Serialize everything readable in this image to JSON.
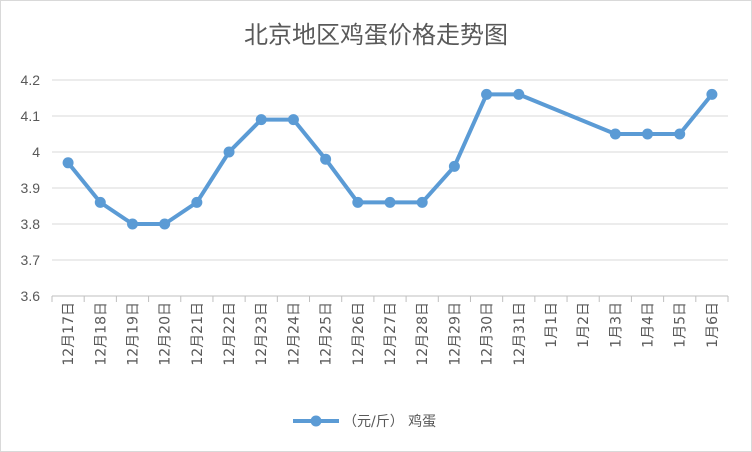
{
  "chart_data": {
    "type": "line",
    "title": "北京地区鸡蛋价格走势图",
    "xlabel": "",
    "ylabel": "",
    "categories": [
      "12月17日",
      "12月18日",
      "12月19日",
      "12月20日",
      "12月21日",
      "12月22日",
      "12月23日",
      "12月24日",
      "12月25日",
      "12月26日",
      "12月27日",
      "12月28日",
      "12月29日",
      "12月30日",
      "12月31日",
      "1月1日",
      "1月2日",
      "1月3日",
      "1月4日",
      "1月5日",
      "1月6日"
    ],
    "series": [
      {
        "name": "（元/斤） 鸡蛋",
        "color": "#5b9bd5",
        "values": [
          3.97,
          3.86,
          3.8,
          3.8,
          3.86,
          4.0,
          4.09,
          4.09,
          3.98,
          3.86,
          3.86,
          3.86,
          3.96,
          4.16,
          4.16,
          null,
          null,
          4.05,
          4.05,
          4.05,
          4.16
        ]
      }
    ],
    "ylim": [
      3.6,
      4.2
    ],
    "yticks": [
      "3.6",
      "3.7",
      "3.8",
      "3.9",
      "4",
      "4.1",
      "4.2"
    ],
    "grid": true,
    "legend": "bottom"
  }
}
